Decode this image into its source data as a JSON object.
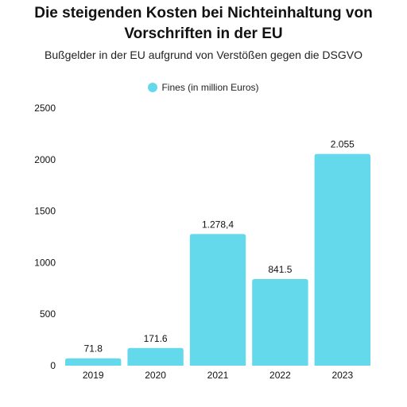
{
  "chart_data": {
    "type": "bar",
    "title_lines": [
      "Die steigenden Kosten bei Nichteinhaltung von",
      "Vorschriften in der EU"
    ],
    "subtitle": "Bußgelder in der EU aufgrund von Verstößen gegen die DSGVO",
    "categories": [
      "2019",
      "2020",
      "2021",
      "2022",
      "2023"
    ],
    "series": [
      {
        "name": "Fines (in million Euros)",
        "values": [
          71.8,
          171.6,
          1278.4,
          841.5,
          2055
        ],
        "data_labels": [
          "71.8",
          "171.6",
          "1.278,4",
          "841.5",
          "2.055"
        ],
        "color": "#64d9eb"
      }
    ],
    "ylim": [
      0,
      2500
    ],
    "yticks": [
      "0",
      "500",
      "1000",
      "1500",
      "2000",
      "2500"
    ],
    "ytick_values": [
      0,
      500,
      1000,
      1500,
      2000,
      2500
    ],
    "grid": false,
    "legend_position": "top-center"
  }
}
